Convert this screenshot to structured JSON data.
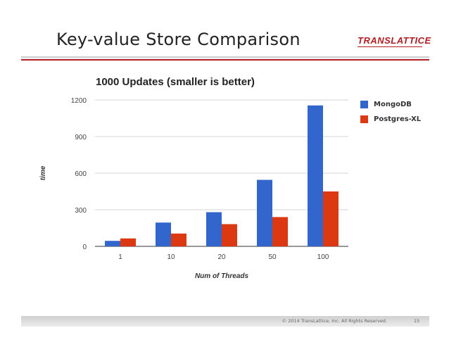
{
  "slide": {
    "title": "Key-value Store Comparison",
    "logo_text": "TRANSLATTICE",
    "footer": "© 2014 TransLattice, Inc. All Rights Reserved.",
    "page_number": "15"
  },
  "colors": {
    "mongodb": "#3366cc",
    "postgres_xl": "#dc3912",
    "brand_red": "#b01e23"
  },
  "chart_data": {
    "type": "bar",
    "title": "1000 Updates (smaller is better)",
    "xlabel": "Num of Threads",
    "ylabel": "time",
    "categories": [
      "1",
      "10",
      "20",
      "50",
      "100"
    ],
    "series": [
      {
        "name": "MongoDB",
        "values": [
          45,
          195,
          280,
          545,
          1155
        ]
      },
      {
        "name": "Postgres-XL",
        "values": [
          65,
          105,
          182,
          240,
          450
        ]
      }
    ],
    "ylim": [
      0,
      1200
    ],
    "yticks": [
      0,
      300,
      600,
      900,
      1200
    ],
    "grid": true,
    "legend": "right"
  }
}
